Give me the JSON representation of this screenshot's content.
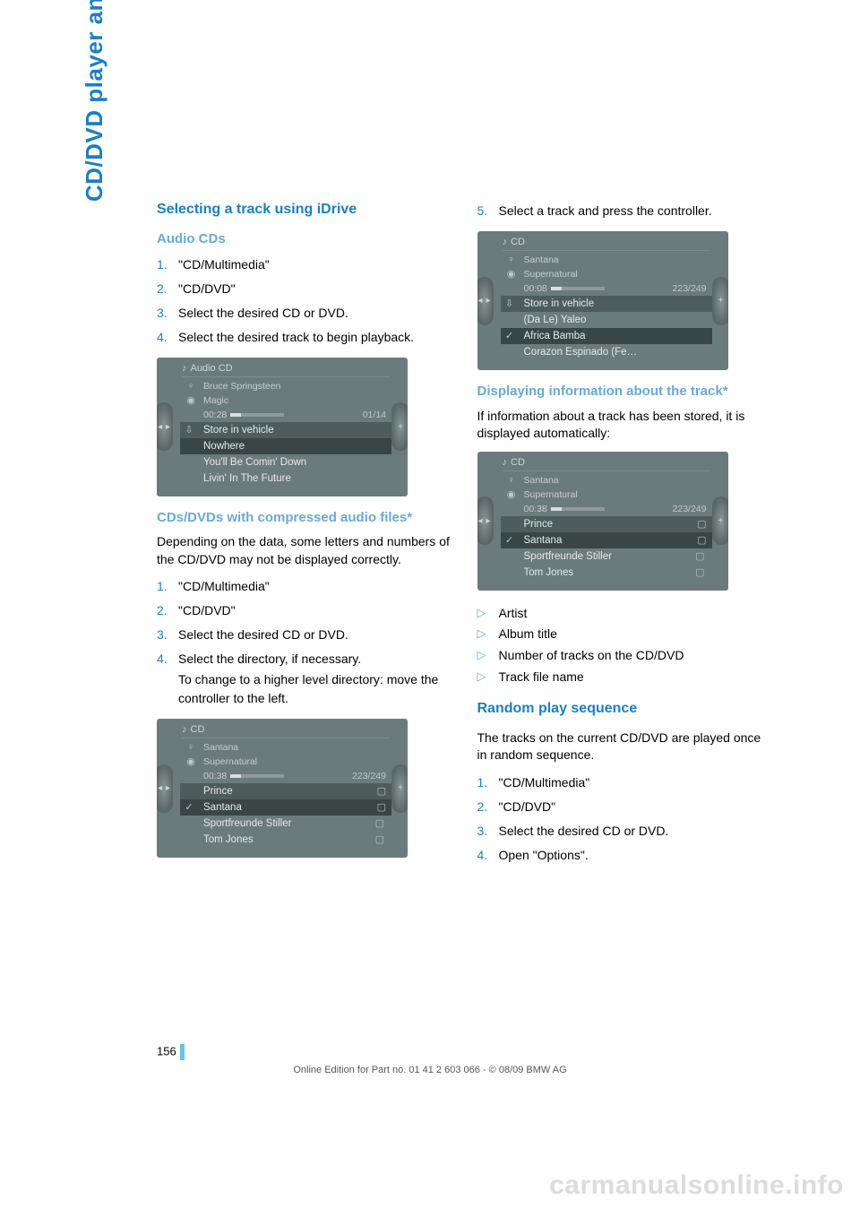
{
  "colors": {
    "heading_blue": "#1a7fc4",
    "subheading_blue": "#6aa9d6",
    "text": "#000000",
    "screenshot_bg": "#6b7a7a",
    "screenshot_dark": "#4f5c5c",
    "screenshot_highlight": "#3a4646",
    "screenshot_text": "#e6eaea",
    "accent_cyan": "#5ec5e6",
    "watermark": "#dcdcdc"
  },
  "typography": {
    "body_size_pt": 11,
    "h2_size_pt": 12,
    "h3_size_pt": 11.5,
    "side_tab_size_pt": 20
  },
  "side_tab": "CD/DVD player and CD changer",
  "left": {
    "h2": "Selecting a track using iDrive",
    "audio_cds": {
      "title": "Audio CDs",
      "steps": [
        "\"CD/Multimedia\"",
        "\"CD/DVD\"",
        "Select the desired CD or DVD.",
        "Select the desired track to begin playback."
      ]
    },
    "screenshot1": {
      "header_icon": "♪",
      "header": "Audio CD",
      "rows": [
        {
          "icon": "♀",
          "text": "Bruce Springsteen"
        },
        {
          "icon": "◉",
          "text": "Magic"
        },
        {
          "icon": "",
          "time": "00:28",
          "right": "01/14",
          "progress": true
        },
        {
          "icon": "⇩",
          "text": "Store in vehicle",
          "dark": true
        },
        {
          "icon": "",
          "text": "Nowhere",
          "highlight": true
        },
        {
          "icon": "",
          "text": "You'll Be Comin' Down"
        },
        {
          "icon": "",
          "text": "Livin' In The Future"
        }
      ]
    },
    "compressed": {
      "title": "CDs/DVDs with compressed audio files*",
      "intro": "Depending on the data, some letters and numbers of the CD/DVD may not be displayed correctly.",
      "steps": [
        "\"CD/Multimedia\"",
        "\"CD/DVD\"",
        "Select the desired CD or DVD.",
        "Select the directory, if necessary."
      ],
      "step4_sub": "To change to a higher level directory: move the controller to the left."
    },
    "screenshot2": {
      "header_icon": "♪",
      "header": "CD",
      "rows": [
        {
          "icon": "♀",
          "text": "Santana"
        },
        {
          "icon": "◉",
          "text": "Supernatural"
        },
        {
          "icon": "",
          "time": "00:38",
          "right": "223/249",
          "progress": true
        },
        {
          "icon": "",
          "text": "Prince",
          "folder": true,
          "dark": true
        },
        {
          "icon": "✓",
          "text": "Santana",
          "folder": true,
          "highlight": true
        },
        {
          "icon": "",
          "text": "Sportfreunde Stiller",
          "folder": true
        },
        {
          "icon": "",
          "text": "Tom Jones",
          "folder": true
        }
      ]
    }
  },
  "right": {
    "step5_num": "5.",
    "step5": "Select a track and press the controller.",
    "screenshot3": {
      "header_icon": "♪",
      "header": "CD",
      "rows": [
        {
          "icon": "♀",
          "text": "Santana"
        },
        {
          "icon": "◉",
          "text": "Supernatural"
        },
        {
          "icon": "",
          "time": "00:08",
          "right": "223/249",
          "progress": true
        },
        {
          "icon": "⇩",
          "text": "Store in vehicle",
          "dark": true
        },
        {
          "icon": "",
          "text": "(Da Le) Yaleo"
        },
        {
          "icon": "✓",
          "text": "Africa Bamba",
          "highlight": true
        },
        {
          "icon": "",
          "text": "Corazon Espinado (Fe…"
        }
      ]
    },
    "display_info": {
      "title": "Displaying information about the track*",
      "intro": "If information about a track has been stored, it is displayed automatically:"
    },
    "screenshot4": {
      "header_icon": "♪",
      "header": "CD",
      "rows": [
        {
          "icon": "♀",
          "text": "Santana"
        },
        {
          "icon": "◉",
          "text": "Supernatural"
        },
        {
          "icon": "",
          "time": "00:38",
          "right": "223/249",
          "progress": true
        },
        {
          "icon": "",
          "text": "Prince",
          "folder": true,
          "dark": true
        },
        {
          "icon": "✓",
          "text": "Santana",
          "folder": true,
          "highlight": true
        },
        {
          "icon": "",
          "text": "Sportfreunde Stiller",
          "folder": true
        },
        {
          "icon": "",
          "text": "Tom Jones",
          "folder": true
        }
      ]
    },
    "info_bullets": [
      "Artist",
      "Album title",
      "Number of tracks on the CD/DVD",
      "Track file name"
    ],
    "random": {
      "title": "Random play sequence",
      "intro": "The tracks on the current CD/DVD are played once in random sequence.",
      "steps": [
        "\"CD/Multimedia\"",
        "\"CD/DVD\"",
        "Select the desired CD or DVD.",
        "Open \"Options\"."
      ]
    }
  },
  "page_number": "156",
  "footer": "Online Edition for Part no. 01 41 2 603 066 - © 08/09 BMW AG",
  "watermark": "carmanualsonline.info"
}
